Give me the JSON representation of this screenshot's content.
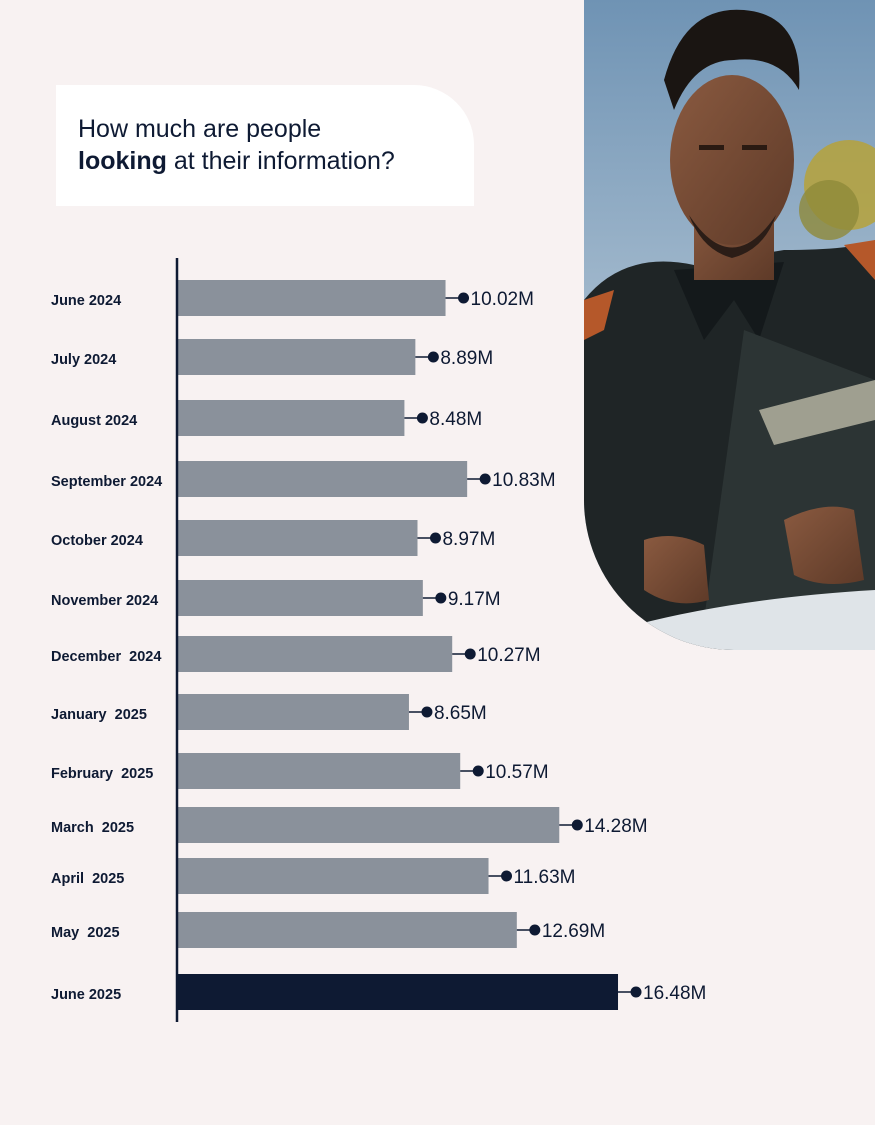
{
  "title": {
    "line1": "How much are people",
    "line2_bold": "looking",
    "line2_rest": " at their information?"
  },
  "photo": {
    "icon": "person-reading-tablet-photo"
  },
  "colors": {
    "bar": "#8a919b",
    "highlight": "#0e1a33",
    "background": "#f8f2f2"
  },
  "chart_data": {
    "type": "bar",
    "orientation": "horizontal",
    "title": "How much are people looking at their information?",
    "categories": [
      "June 2024",
      "July 2024",
      "August 2024",
      "September 2024",
      "October 2024",
      "November 2024",
      "December  2024",
      "January  2025",
      "February  2025",
      "March  2025",
      "April  2025",
      "May  2025",
      "June 2025"
    ],
    "values": [
      10.02,
      8.89,
      8.48,
      10.83,
      8.97,
      9.17,
      10.27,
      8.65,
      10.57,
      14.28,
      11.63,
      12.69,
      16.48
    ],
    "value_labels": [
      "10.02M",
      "8.89M",
      "8.48M",
      "10.83M",
      "8.97M",
      "9.17M",
      "10.27M",
      "8.65M",
      "10.57M",
      "14.28M",
      "11.63M",
      "12.69M",
      "16.48M"
    ],
    "highlight_index": 12,
    "unit": "M"
  }
}
